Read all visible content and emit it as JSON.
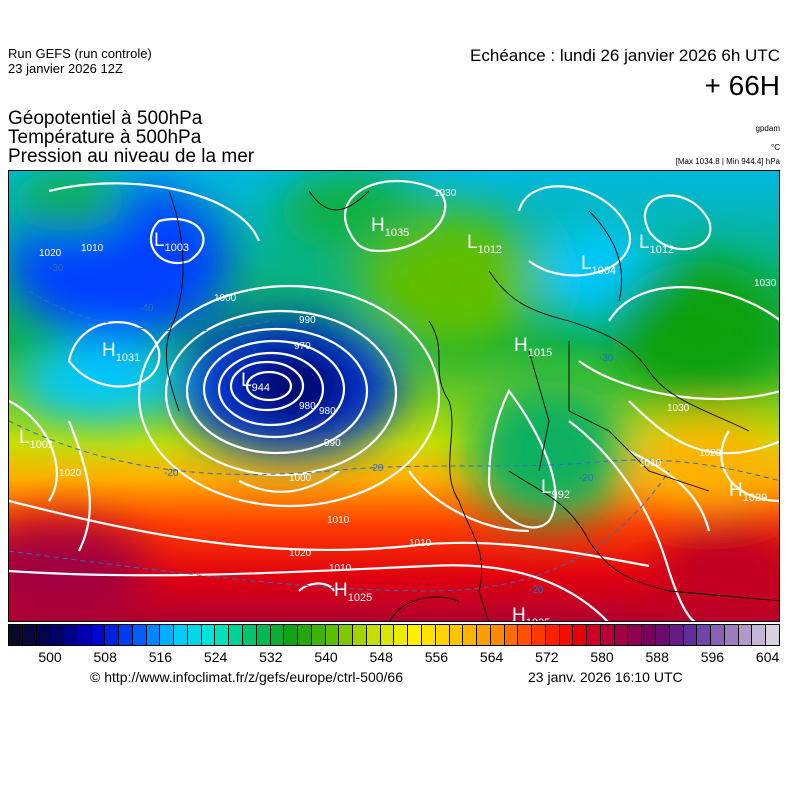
{
  "header": {
    "run": "Run GEFS (run controle)",
    "run_date": "23 janvier 2026 12Z",
    "valid": "Echéance : lundi 26 janvier 2026 6h UTC",
    "lead": "+ 66H"
  },
  "fields": {
    "geopotential": "Géopotentiel à 500hPa",
    "temperature": "Température à 500hPa",
    "pressure": "Pression au niveau de la mer",
    "geopotential_unit": "gpdam",
    "temperature_unit": "°C",
    "pressure_unit": "[Max 1034.8 | Min 944.4] hPa"
  },
  "map": {
    "centers": [
      {
        "type": "L",
        "value": "1003"
      },
      {
        "type": "H",
        "value": "1035"
      },
      {
        "type": "L",
        "value": "1012"
      },
      {
        "type": "L",
        "value": "1012"
      },
      {
        "type": "L",
        "value": "1004"
      },
      {
        "type": "H",
        "value": "1031"
      },
      {
        "type": "L",
        "value": "944"
      },
      {
        "type": "L",
        "value": "1001"
      },
      {
        "type": "H",
        "value": "1015"
      },
      {
        "type": "L",
        "value": "992"
      },
      {
        "type": "H",
        "value": "1029"
      },
      {
        "type": "H",
        "value": "1025"
      },
      {
        "type": "H",
        "value": "1025"
      }
    ],
    "isobar_labels": [
      "1010",
      "1020",
      "1030",
      "1000",
      "990",
      "980",
      "970",
      "1000",
      "990",
      "980",
      "1010",
      "1020",
      "1030",
      "1020",
      "1010",
      "1010",
      "1010",
      "1020",
      "1030"
    ],
    "temperature_labels": [
      "-40",
      "-30",
      "-20",
      "-20",
      "-30",
      "-20",
      "-20"
    ]
  },
  "colorbar": {
    "ticks": [
      "500",
      "508",
      "516",
      "524",
      "532",
      "540",
      "548",
      "556",
      "564",
      "572",
      "580",
      "588",
      "596",
      "604"
    ],
    "stops": [
      "#0a0a28",
      "#000060",
      "#0000c8",
      "#0050ff",
      "#00c8ff",
      "#00e8d0",
      "#00c060",
      "#10a010",
      "#60c000",
      "#c8e000",
      "#fff000",
      "#ffc800",
      "#ff9000",
      "#ff4000",
      "#f00000",
      "#b00040",
      "#700060",
      "#6030a0",
      "#a080c0",
      "#d8d0e0"
    ]
  },
  "footer": {
    "credit": "© http://www.infoclimat.fr/z/gefs/europe/ctrl-500/66",
    "generated": "23 janv. 2026 16:10 UTC"
  }
}
